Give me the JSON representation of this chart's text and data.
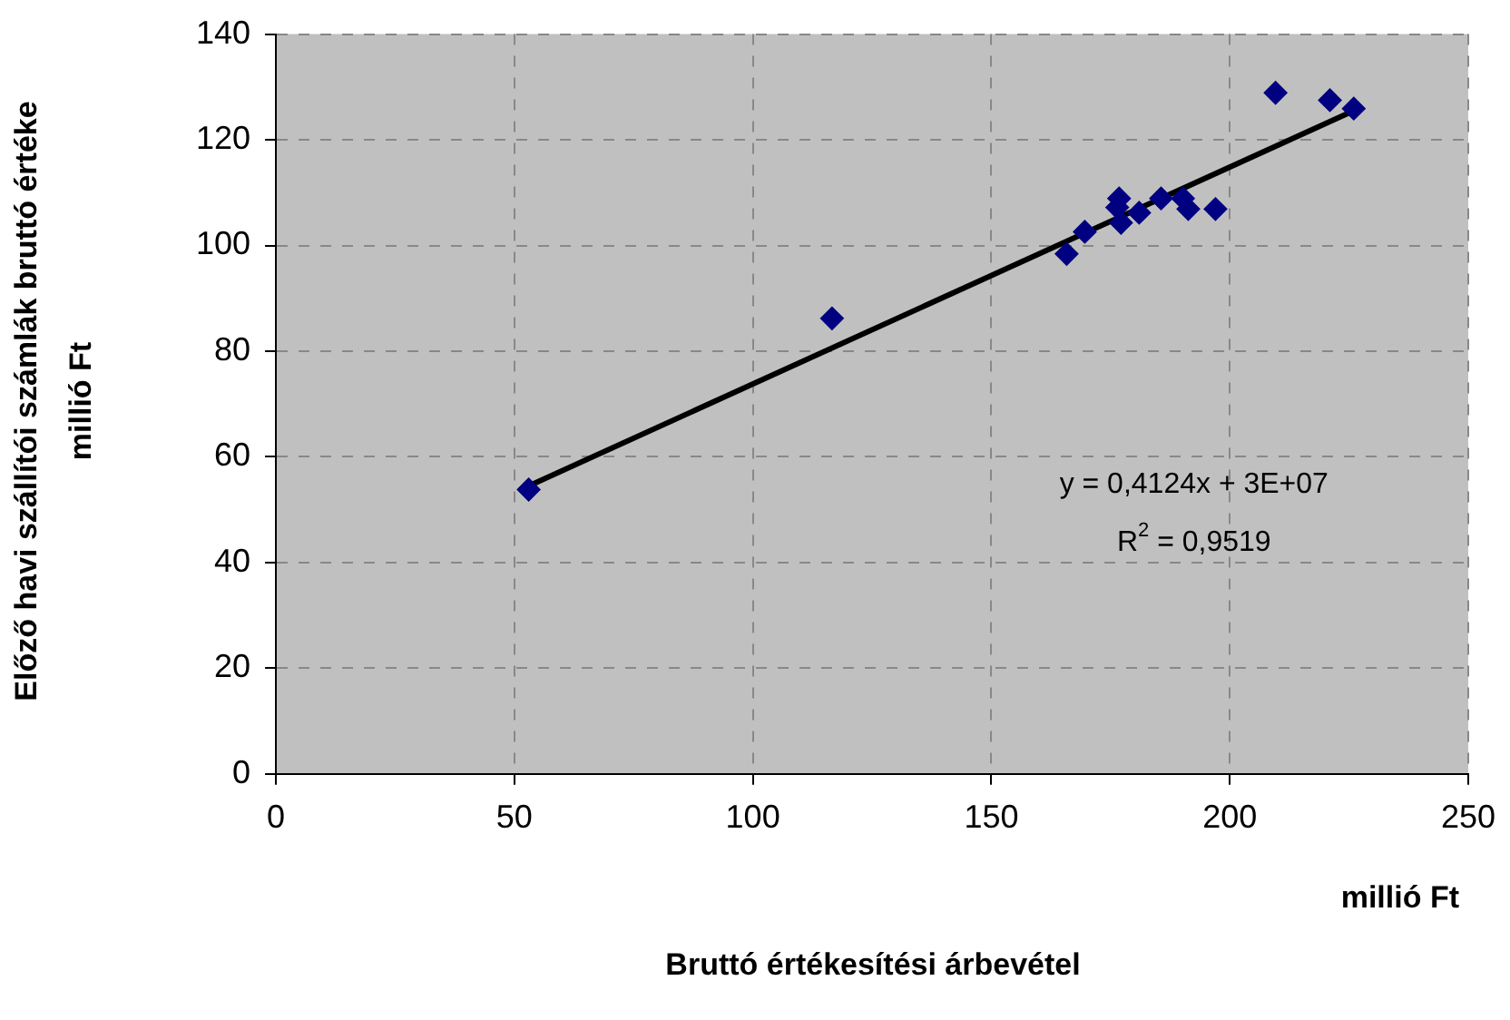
{
  "chart_data": {
    "type": "scatter",
    "xlabel": "millió Ft\nBruttó értékesítési árbevétel",
    "ylabel": "Előző havi szállítói számlák bruttó értéke\nmillió Ft",
    "series": [
      {
        "color": "#000080",
        "x": [
          53,
          116.6,
          165.8,
          169.6,
          176.8,
          176.4,
          177.2,
          181,
          185.6,
          190.2,
          191.3,
          197,
          209.6,
          221,
          226
        ],
        "values": [
          53.8,
          86.2,
          98.4,
          102.6,
          108.9,
          107.2,
          104.3,
          106.2,
          108.9,
          108.9,
          106.9,
          106.9,
          128.9,
          127.5,
          125.9
        ]
      },
      {
        "type": "line",
        "color": "#000000",
        "x": [
          53,
          226
        ],
        "values": [
          54.5,
          125.5
        ],
        "marker": "none"
      }
    ],
    "annotations": [
      "y = 0,4124x + 3E+07",
      "R$^{2}$ = 0,9519"
    ],
    "xlim": [
      0,
      250
    ],
    "xticks": [
      0,
      50,
      100,
      150,
      200,
      250
    ],
    "ylim": [
      0,
      140
    ],
    "yticks": [
      0,
      20,
      40,
      60,
      80,
      100,
      120,
      140
    ],
    "grid": true,
    "legend": false,
    "marker": "diamond"
  }
}
